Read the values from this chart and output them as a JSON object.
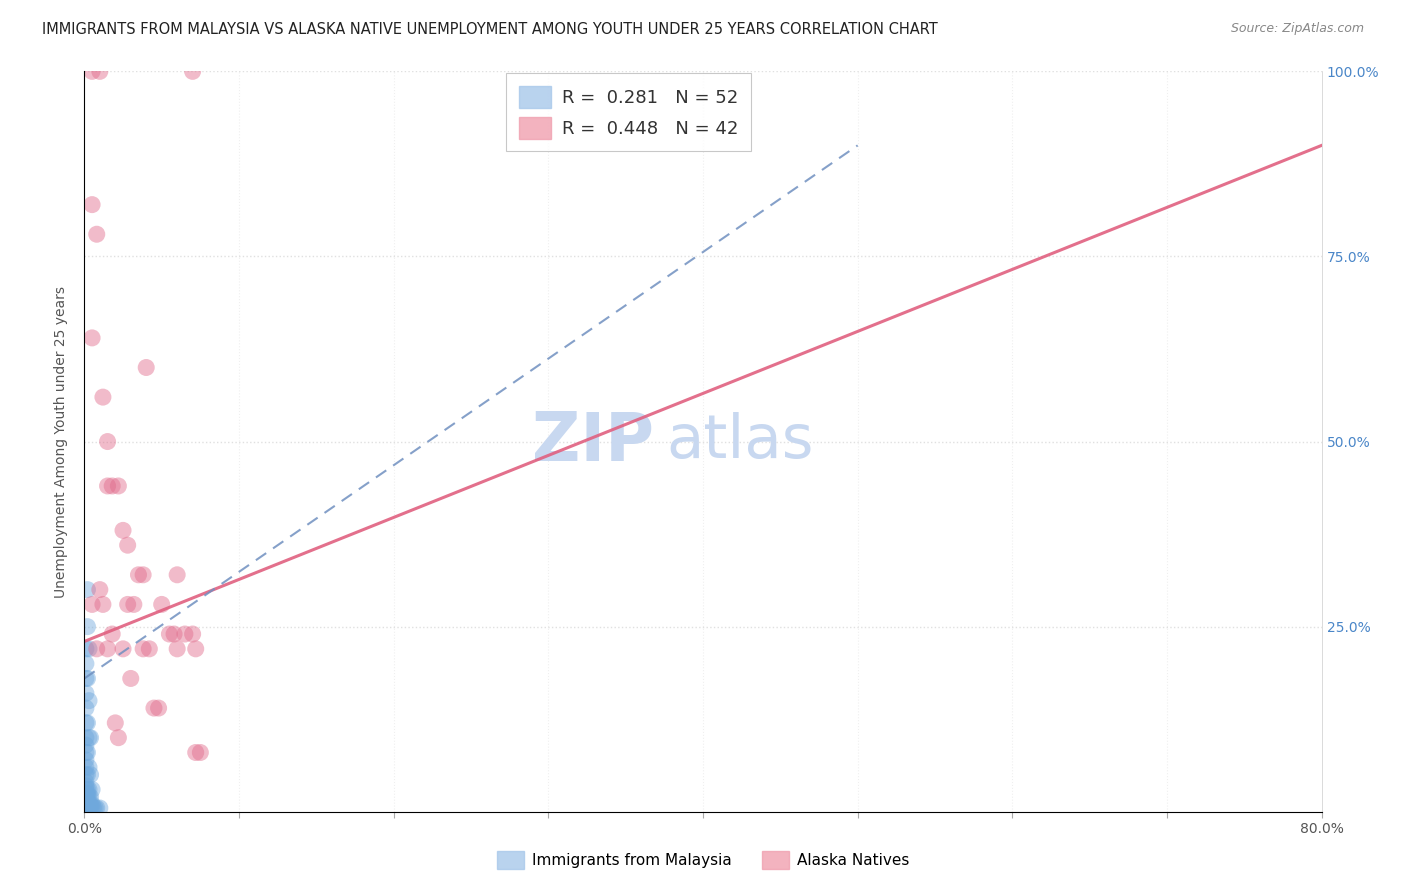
{
  "title": "IMMIGRANTS FROM MALAYSIA VS ALASKA NATIVE UNEMPLOYMENT AMONG YOUTH UNDER 25 YEARS CORRELATION CHART",
  "source": "Source: ZipAtlas.com",
  "ylabel": "Unemployment Among Youth under 25 years",
  "xlim": [
    0,
    0.8
  ],
  "ylim": [
    0,
    1.0
  ],
  "legend_blue_R": "0.281",
  "legend_blue_N": "52",
  "legend_pink_R": "0.448",
  "legend_pink_N": "42",
  "legend_label_blue": "Immigrants from Malaysia",
  "legend_label_pink": "Alaska Natives",
  "watermark_zip": "ZIP",
  "watermark_atlas": "atlas",
  "blue_color": "#6fa8dc",
  "pink_color": "#e06a8a",
  "blue_scatter": [
    [
      0.001,
      0.005
    ],
    [
      0.001,
      0.01
    ],
    [
      0.001,
      0.015
    ],
    [
      0.001,
      0.02
    ],
    [
      0.001,
      0.025
    ],
    [
      0.001,
      0.03
    ],
    [
      0.001,
      0.035
    ],
    [
      0.001,
      0.04
    ],
    [
      0.001,
      0.05
    ],
    [
      0.001,
      0.06
    ],
    [
      0.001,
      0.07
    ],
    [
      0.001,
      0.08
    ],
    [
      0.001,
      0.09
    ],
    [
      0.001,
      0.1
    ],
    [
      0.001,
      0.12
    ],
    [
      0.001,
      0.14
    ],
    [
      0.001,
      0.16
    ],
    [
      0.001,
      0.18
    ],
    [
      0.001,
      0.2
    ],
    [
      0.001,
      0.22
    ],
    [
      0.002,
      0.005
    ],
    [
      0.002,
      0.01
    ],
    [
      0.002,
      0.015
    ],
    [
      0.002,
      0.02
    ],
    [
      0.002,
      0.025
    ],
    [
      0.002,
      0.03
    ],
    [
      0.002,
      0.05
    ],
    [
      0.002,
      0.08
    ],
    [
      0.002,
      0.12
    ],
    [
      0.002,
      0.18
    ],
    [
      0.002,
      0.25
    ],
    [
      0.002,
      0.3
    ],
    [
      0.003,
      0.005
    ],
    [
      0.003,
      0.01
    ],
    [
      0.003,
      0.02
    ],
    [
      0.003,
      0.03
    ],
    [
      0.003,
      0.06
    ],
    [
      0.003,
      0.1
    ],
    [
      0.003,
      0.15
    ],
    [
      0.003,
      0.22
    ],
    [
      0.004,
      0.005
    ],
    [
      0.004,
      0.01
    ],
    [
      0.004,
      0.02
    ],
    [
      0.004,
      0.05
    ],
    [
      0.004,
      0.1
    ],
    [
      0.005,
      0.005
    ],
    [
      0.005,
      0.01
    ],
    [
      0.005,
      0.03
    ],
    [
      0.006,
      0.005
    ],
    [
      0.007,
      0.005
    ],
    [
      0.008,
      0.005
    ],
    [
      0.01,
      0.005
    ]
  ],
  "pink_scatter": [
    [
      0.005,
      1.0
    ],
    [
      0.01,
      1.0
    ],
    [
      0.005,
      0.82
    ],
    [
      0.008,
      0.78
    ],
    [
      0.005,
      0.64
    ],
    [
      0.012,
      0.56
    ],
    [
      0.015,
      0.5
    ],
    [
      0.015,
      0.44
    ],
    [
      0.018,
      0.44
    ],
    [
      0.022,
      0.44
    ],
    [
      0.025,
      0.38
    ],
    [
      0.028,
      0.36
    ],
    [
      0.028,
      0.28
    ],
    [
      0.032,
      0.28
    ],
    [
      0.035,
      0.32
    ],
    [
      0.038,
      0.32
    ],
    [
      0.038,
      0.22
    ],
    [
      0.042,
      0.22
    ],
    [
      0.045,
      0.14
    ],
    [
      0.048,
      0.14
    ],
    [
      0.05,
      0.28
    ],
    [
      0.055,
      0.24
    ],
    [
      0.058,
      0.24
    ],
    [
      0.06,
      0.32
    ],
    [
      0.06,
      0.22
    ],
    [
      0.065,
      0.24
    ],
    [
      0.07,
      0.24
    ],
    [
      0.072,
      0.22
    ],
    [
      0.072,
      0.08
    ],
    [
      0.075,
      0.08
    ],
    [
      0.005,
      0.28
    ],
    [
      0.008,
      0.22
    ],
    [
      0.01,
      0.3
    ],
    [
      0.012,
      0.28
    ],
    [
      0.015,
      0.22
    ],
    [
      0.018,
      0.24
    ],
    [
      0.02,
      0.12
    ],
    [
      0.022,
      0.1
    ],
    [
      0.025,
      0.22
    ],
    [
      0.03,
      0.18
    ],
    [
      0.07,
      1.0
    ],
    [
      0.04,
      0.6
    ]
  ],
  "pink_line_x": [
    0.0,
    0.8
  ],
  "pink_line_y": [
    0.23,
    0.9
  ],
  "blue_line_x": [
    0.0,
    0.5
  ],
  "blue_line_y": [
    0.18,
    0.9
  ],
  "title_fontsize": 10.5,
  "axis_label_fontsize": 10,
  "tick_fontsize": 10,
  "legend_fontsize": 13,
  "watermark_fontsize": 48,
  "watermark_color_zip": "#c8d8f0",
  "watermark_color_atlas": "#c8d8f0",
  "background_color": "#ffffff",
  "grid_color": "#e0e0e0",
  "dot_size": 150
}
